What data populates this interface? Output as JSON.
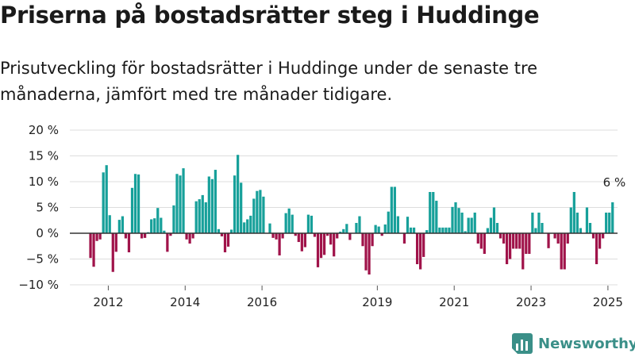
{
  "title": "Priserna på bostadsrätter steg i Huddinge",
  "subtitle": "Prisutveckling för bostadsrätter i Huddinge under de senaste tre månaderna, jämfört med tre månader tidigare.",
  "brand": {
    "name": "Newsworthy",
    "icon": "newsworthy-logo-icon",
    "color": "#3a8f88"
  },
  "colors": {
    "positive": "#17a09a",
    "negative": "#a0134a",
    "grid": "#dddddd",
    "zero_line": "#333333"
  },
  "chart_data": {
    "type": "bar",
    "x_start": "2011-01",
    "x_end": "2025-04",
    "x_ticks": [
      {
        "date": "2012-01",
        "label": "2012"
      },
      {
        "date": "2014-01",
        "label": "2014"
      },
      {
        "date": "2016-01",
        "label": "2016"
      },
      {
        "date": "2019-01",
        "label": "2019"
      },
      {
        "date": "2021-01",
        "label": "2021"
      },
      {
        "date": "2023-01",
        "label": "2023"
      },
      {
        "date": "2025-01",
        "label": "2025"
      }
    ],
    "y_ticks": [
      {
        "value": 20,
        "label": "20 %"
      },
      {
        "value": 15,
        "label": "15 %"
      },
      {
        "value": 10,
        "label": "10 %"
      },
      {
        "value": 5,
        "label": "5 %"
      },
      {
        "value": 0,
        "label": "0 %"
      },
      {
        "value": -5,
        "label": "−5 %"
      },
      {
        "value": -10,
        "label": "−10 %"
      }
    ],
    "ylim": [
      -10,
      20
    ],
    "grid": true,
    "annotation": {
      "date": "2025-03",
      "label": "6 %"
    },
    "points": [
      {
        "x": "2011-07",
        "y": -4.8
      },
      {
        "x": "2011-08",
        "y": -6.5
      },
      {
        "x": "2011-09",
        "y": -1.5
      },
      {
        "x": "2011-10",
        "y": -1.2
      },
      {
        "x": "2011-11",
        "y": 11.8
      },
      {
        "x": "2011-12",
        "y": 13.2
      },
      {
        "x": "2012-01",
        "y": 3.5
      },
      {
        "x": "2012-02",
        "y": -7.5
      },
      {
        "x": "2012-03",
        "y": -3.6
      },
      {
        "x": "2012-04",
        "y": 2.6
      },
      {
        "x": "2012-05",
        "y": 3.3
      },
      {
        "x": "2012-06",
        "y": -1.0
      },
      {
        "x": "2012-07",
        "y": -3.7
      },
      {
        "x": "2012-08",
        "y": 8.8
      },
      {
        "x": "2012-09",
        "y": 11.5
      },
      {
        "x": "2012-10",
        "y": 11.4
      },
      {
        "x": "2012-11",
        "y": -1.0
      },
      {
        "x": "2012-12",
        "y": -0.9
      },
      {
        "x": "2013-01",
        "y": 0.2
      },
      {
        "x": "2013-02",
        "y": 2.7
      },
      {
        "x": "2013-03",
        "y": 2.9
      },
      {
        "x": "2013-04",
        "y": 4.9
      },
      {
        "x": "2013-05",
        "y": 3.0
      },
      {
        "x": "2013-06",
        "y": 0.5
      },
      {
        "x": "2013-07",
        "y": -3.6
      },
      {
        "x": "2013-08",
        "y": -0.5
      },
      {
        "x": "2013-09",
        "y": 5.4
      },
      {
        "x": "2013-10",
        "y": 11.5
      },
      {
        "x": "2013-11",
        "y": 11.2
      },
      {
        "x": "2013-12",
        "y": 12.6
      },
      {
        "x": "2014-01",
        "y": -1.2
      },
      {
        "x": "2014-02",
        "y": -2.0
      },
      {
        "x": "2014-03",
        "y": -1.0
      },
      {
        "x": "2014-04",
        "y": 6.2
      },
      {
        "x": "2014-05",
        "y": 6.6
      },
      {
        "x": "2014-06",
        "y": 7.4
      },
      {
        "x": "2014-07",
        "y": 6.0
      },
      {
        "x": "2014-08",
        "y": 11.0
      },
      {
        "x": "2014-09",
        "y": 10.5
      },
      {
        "x": "2014-10",
        "y": 12.3
      },
      {
        "x": "2014-11",
        "y": 0.8
      },
      {
        "x": "2014-12",
        "y": -0.6
      },
      {
        "x": "2015-01",
        "y": -3.7
      },
      {
        "x": "2015-02",
        "y": -2.6
      },
      {
        "x": "2015-03",
        "y": 0.7
      },
      {
        "x": "2015-04",
        "y": 11.2
      },
      {
        "x": "2015-05",
        "y": 15.2
      },
      {
        "x": "2015-06",
        "y": 9.8
      },
      {
        "x": "2015-07",
        "y": 2.1
      },
      {
        "x": "2015-08",
        "y": 2.7
      },
      {
        "x": "2015-09",
        "y": 3.4
      },
      {
        "x": "2015-10",
        "y": 6.7
      },
      {
        "x": "2015-11",
        "y": 8.2
      },
      {
        "x": "2015-12",
        "y": 8.4
      },
      {
        "x": "2016-01",
        "y": 7.1
      },
      {
        "x": "2016-02",
        "y": 0.0
      },
      {
        "x": "2016-03",
        "y": 1.9
      },
      {
        "x": "2016-04",
        "y": -0.9
      },
      {
        "x": "2016-05",
        "y": -1.2
      },
      {
        "x": "2016-06",
        "y": -4.3
      },
      {
        "x": "2016-07",
        "y": -1.0
      },
      {
        "x": "2016-08",
        "y": 3.9
      },
      {
        "x": "2016-09",
        "y": 4.8
      },
      {
        "x": "2016-10",
        "y": 3.6
      },
      {
        "x": "2016-11",
        "y": -0.5
      },
      {
        "x": "2016-12",
        "y": -1.7
      },
      {
        "x": "2017-01",
        "y": -3.5
      },
      {
        "x": "2017-02",
        "y": -2.7
      },
      {
        "x": "2017-03",
        "y": 3.6
      },
      {
        "x": "2017-04",
        "y": 3.4
      },
      {
        "x": "2017-05",
        "y": -0.7
      },
      {
        "x": "2017-06",
        "y": -6.6
      },
      {
        "x": "2017-07",
        "y": -4.8
      },
      {
        "x": "2017-08",
        "y": -4.2
      },
      {
        "x": "2017-09",
        "y": -0.5
      },
      {
        "x": "2017-10",
        "y": -2.2
      },
      {
        "x": "2017-11",
        "y": -4.5
      },
      {
        "x": "2017-12",
        "y": -1.0
      },
      {
        "x": "2018-01",
        "y": 0.3
      },
      {
        "x": "2018-02",
        "y": 0.8
      },
      {
        "x": "2018-03",
        "y": 1.8
      },
      {
        "x": "2018-04",
        "y": -1.3
      },
      {
        "x": "2018-05",
        "y": 0.0
      },
      {
        "x": "2018-06",
        "y": 2.0
      },
      {
        "x": "2018-07",
        "y": 3.3
      },
      {
        "x": "2018-08",
        "y": -2.5
      },
      {
        "x": "2018-09",
        "y": -7.2
      },
      {
        "x": "2018-10",
        "y": -8.0
      },
      {
        "x": "2018-11",
        "y": -2.5
      },
      {
        "x": "2018-12",
        "y": 1.6
      },
      {
        "x": "2019-01",
        "y": 1.3
      },
      {
        "x": "2019-02",
        "y": -0.5
      },
      {
        "x": "2019-03",
        "y": 1.7
      },
      {
        "x": "2019-04",
        "y": 4.2
      },
      {
        "x": "2019-05",
        "y": 9.0
      },
      {
        "x": "2019-06",
        "y": 9.0
      },
      {
        "x": "2019-07",
        "y": 3.3
      },
      {
        "x": "2019-08",
        "y": 0.0
      },
      {
        "x": "2019-09",
        "y": -2.0
      },
      {
        "x": "2019-10",
        "y": 3.2
      },
      {
        "x": "2019-11",
        "y": 1.1
      },
      {
        "x": "2019-12",
        "y": 1.1
      },
      {
        "x": "2020-01",
        "y": -6.0
      },
      {
        "x": "2020-02",
        "y": -7.0
      },
      {
        "x": "2020-03",
        "y": -4.6
      },
      {
        "x": "2020-04",
        "y": 0.6
      },
      {
        "x": "2020-05",
        "y": 8.0
      },
      {
        "x": "2020-06",
        "y": 8.0
      },
      {
        "x": "2020-07",
        "y": 6.3
      },
      {
        "x": "2020-08",
        "y": 1.1
      },
      {
        "x": "2020-09",
        "y": 1.1
      },
      {
        "x": "2020-10",
        "y": 1.1
      },
      {
        "x": "2020-11",
        "y": 1.1
      },
      {
        "x": "2020-12",
        "y": 5.1
      },
      {
        "x": "2021-01",
        "y": 6.0
      },
      {
        "x": "2021-02",
        "y": 4.9
      },
      {
        "x": "2021-03",
        "y": 4.0
      },
      {
        "x": "2021-04",
        "y": 0.4
      },
      {
        "x": "2021-05",
        "y": 3.0
      },
      {
        "x": "2021-06",
        "y": 3.0
      },
      {
        "x": "2021-07",
        "y": 4.0
      },
      {
        "x": "2021-08",
        "y": -2.0
      },
      {
        "x": "2021-09",
        "y": -3.0
      },
      {
        "x": "2021-10",
        "y": -4.0
      },
      {
        "x": "2021-11",
        "y": 1.0
      },
      {
        "x": "2021-12",
        "y": 3.0
      },
      {
        "x": "2022-01",
        "y": 5.0
      },
      {
        "x": "2022-02",
        "y": 2.0
      },
      {
        "x": "2022-03",
        "y": -1.0
      },
      {
        "x": "2022-04",
        "y": -2.0
      },
      {
        "x": "2022-05",
        "y": -6.0
      },
      {
        "x": "2022-06",
        "y": -5.0
      },
      {
        "x": "2022-07",
        "y": -3.0
      },
      {
        "x": "2022-08",
        "y": -3.0
      },
      {
        "x": "2022-09",
        "y": -3.0
      },
      {
        "x": "2022-10",
        "y": -7.0
      },
      {
        "x": "2022-11",
        "y": -4.0
      },
      {
        "x": "2022-12",
        "y": -4.0
      },
      {
        "x": "2023-01",
        "y": 4.0
      },
      {
        "x": "2023-02",
        "y": 1.0
      },
      {
        "x": "2023-03",
        "y": 4.0
      },
      {
        "x": "2023-04",
        "y": 2.0
      },
      {
        "x": "2023-05",
        "y": 0.0
      },
      {
        "x": "2023-06",
        "y": -2.9
      },
      {
        "x": "2023-07",
        "y": 0.0
      },
      {
        "x": "2023-08",
        "y": -1.0
      },
      {
        "x": "2023-09",
        "y": -2.0
      },
      {
        "x": "2023-10",
        "y": -7.0
      },
      {
        "x": "2023-11",
        "y": -7.0
      },
      {
        "x": "2023-12",
        "y": -2.0
      },
      {
        "x": "2024-01",
        "y": 5.0
      },
      {
        "x": "2024-02",
        "y": 8.0
      },
      {
        "x": "2024-03",
        "y": 4.0
      },
      {
        "x": "2024-04",
        "y": 1.0
      },
      {
        "x": "2024-05",
        "y": 0.0
      },
      {
        "x": "2024-06",
        "y": 5.0
      },
      {
        "x": "2024-07",
        "y": 2.0
      },
      {
        "x": "2024-08",
        "y": -1.0
      },
      {
        "x": "2024-09",
        "y": -6.0
      },
      {
        "x": "2024-10",
        "y": -3.0
      },
      {
        "x": "2024-11",
        "y": -1.0
      },
      {
        "x": "2024-12",
        "y": 4.0
      },
      {
        "x": "2025-01",
        "y": 4.0
      },
      {
        "x": "2025-02",
        "y": 6.0
      }
    ]
  }
}
